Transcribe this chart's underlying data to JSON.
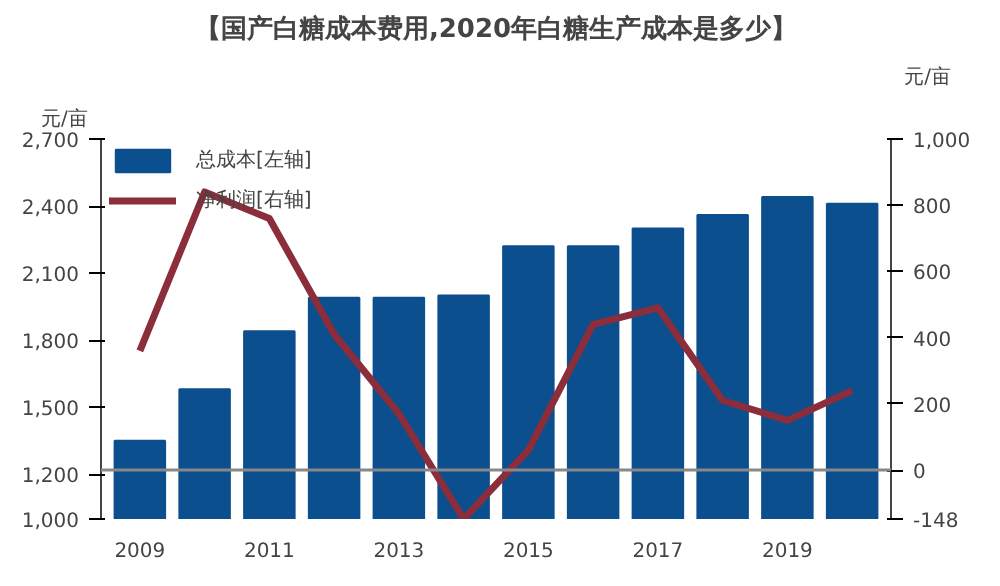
{
  "chart_data": {
    "type": "bar",
    "title": "【国产白糖成本费用,2020年白糖生产成本是多少】",
    "annotations": [
      "元/亩",
      "元/亩"
    ],
    "x": [
      2009,
      2010,
      2011,
      2012,
      2013,
      2014,
      2015,
      2016,
      2017,
      2018,
      2019,
      2020
    ],
    "series": [
      {
        "name": "总成本[左轴]",
        "color": "#0b4f8f",
        "values": [
          1350,
          1580,
          1840,
          1990,
          1990,
          2000,
          2220,
          2220,
          2300,
          2360,
          2440,
          2410
        ]
      },
      {
        "name": "净利润[右轴]",
        "color": "#8b2d3a",
        "type": "line",
        "axis": "y2",
        "values": [
          360,
          840,
          760,
          410,
          170,
          -148,
          60,
          440,
          490,
          210,
          150,
          240
        ]
      }
    ],
    "xlim": [
      2008.4,
      2020.6
    ],
    "xticks": [
      2009,
      2011,
      2013,
      2015,
      2017,
      2019
    ],
    "ylim": [
      1000,
      2700
    ],
    "yticks": [
      {
        "value": 1000,
        "label": "1,000"
      },
      {
        "value": 1200,
        "label": "1,200"
      },
      {
        "value": 1500,
        "label": "1,500"
      },
      {
        "value": 1800,
        "label": "1,800"
      },
      {
        "value": 2100,
        "label": "2,100"
      },
      {
        "value": 2400,
        "label": "2,400"
      },
      {
        "value": 2700,
        "label": "2,700"
      }
    ],
    "y2lim": [
      -148,
      1000
    ],
    "y2ticks": [
      -148,
      0,
      200,
      400,
      600,
      800,
      {
        "value": 1000,
        "label": "1,000"
      }
    ],
    "ref_lines": [
      {
        "axis": "y2",
        "value": 0,
        "color": "#888888"
      }
    ],
    "legend": "top left",
    "grid": false
  }
}
